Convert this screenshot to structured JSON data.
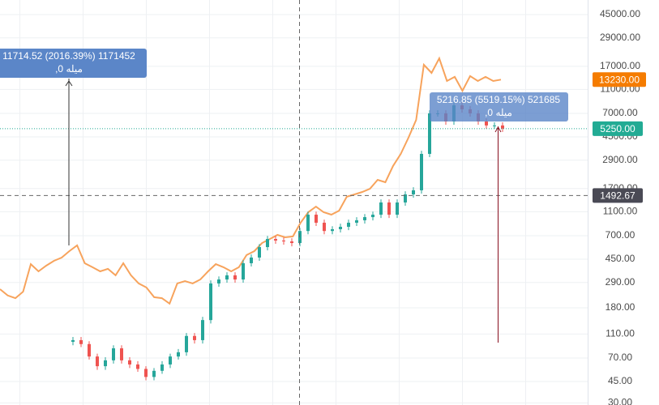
{
  "chart_data": {
    "type": "candlestick",
    "log_scale": true,
    "grid": true,
    "ylim": [
      28.9,
      59200
    ],
    "yticks": [
      {
        "value": 45000,
        "label": "45000.00"
      },
      {
        "value": 29000,
        "label": "29000.00"
      },
      {
        "value": 17000,
        "label": "17000.00"
      },
      {
        "value": 11000,
        "label": "11000.00"
      },
      {
        "value": 7000,
        "label": "7000.00"
      },
      {
        "value": 4500,
        "label": "4500.00"
      },
      {
        "value": 2900,
        "label": "2900.00"
      },
      {
        "value": 1700,
        "label": "1700.00"
      },
      {
        "value": 1100,
        "label": "1100.00"
      },
      {
        "value": 700,
        "label": "700.00"
      },
      {
        "value": 450,
        "label": "450.00"
      },
      {
        "value": 290,
        "label": "290.00"
      },
      {
        "value": 180,
        "label": "180.00"
      },
      {
        "value": 110,
        "label": "110.00"
      },
      {
        "value": 70,
        "label": "70.00"
      },
      {
        "value": 45,
        "label": "45.00"
      },
      {
        "value": 30,
        "label": "30.00"
      }
    ],
    "line": {
      "color": "#f7a35c",
      "values": [
        256,
        227,
        216,
        244,
        410,
        358,
        398,
        436,
        464,
        524,
        584,
        417,
        387,
        358,
        375,
        332,
        417,
        332,
        285,
        264,
        220,
        216,
        195,
        285,
        298,
        285,
        307,
        358,
        410,
        387,
        358,
        387,
        486,
        524,
        610,
        658,
        711,
        679,
        690,
        894,
        1090,
        1211,
        1090,
        1040,
        1122,
        1457,
        1524,
        1596,
        1696,
        2006,
        1916,
        2600,
        3267,
        4430,
        6196,
        17470,
        15000,
        19740,
        12880,
        13920,
        10720,
        14130,
        12880,
        13920,
        12880,
        13230
      ]
    },
    "candles": {
      "up_color": "#26a69a",
      "down_color": "#ef5350",
      "open": [
        95,
        98,
        91,
        72,
        60,
        67,
        84,
        67,
        62,
        57,
        49,
        55,
        62,
        72,
        78,
        106,
        98,
        143,
        285,
        307,
        332,
        307,
        417,
        464,
        565,
        658,
        639,
        629,
        610,
        765,
        1040,
        894,
        765,
        791,
        828,
        894,
        936,
        993,
        1040,
        1309,
        1040,
        1309,
        1524,
        1646,
        3267,
        7003,
        7003,
        6013,
        8150,
        7560,
        7003,
        6013,
        5580,
        5580
      ],
      "high": [
        104,
        104,
        96,
        76,
        71,
        89,
        89,
        71,
        66,
        60,
        58,
        66,
        76,
        83,
        112,
        112,
        152,
        302,
        325,
        352,
        352,
        442,
        492,
        599,
        697,
        697,
        677,
        667,
        811,
        1102,
        1102,
        948,
        838,
        878,
        948,
        992,
        1053,
        1102,
        1388,
        1388,
        1388,
        1615,
        1745,
        3463,
        7423,
        7423,
        7423,
        8639,
        8639,
        8014,
        7423,
        6374,
        5915,
        5915
      ],
      "low": [
        89,
        86,
        68,
        56,
        56,
        63,
        63,
        58,
        54,
        46,
        46,
        52,
        58,
        68,
        73,
        92,
        92,
        134,
        268,
        289,
        289,
        289,
        392,
        436,
        531,
        601,
        591,
        573,
        573,
        719,
        840,
        719,
        719,
        744,
        778,
        840,
        880,
        933,
        978,
        978,
        978,
        1230,
        1433,
        1547,
        3071,
        6583,
        5652,
        5652,
        7106,
        6583,
        5652,
        5245,
        5245,
        4935
      ],
      "close": [
        98,
        91,
        72,
        60,
        67,
        84,
        67,
        62,
        57,
        49,
        55,
        62,
        72,
        78,
        106,
        98,
        143,
        285,
        307,
        332,
        307,
        417,
        464,
        565,
        658,
        639,
        629,
        610,
        765,
        1040,
        894,
        765,
        791,
        828,
        894,
        936,
        993,
        1040,
        1309,
        1040,
        1309,
        1524,
        1646,
        3267,
        7003,
        7003,
        6013,
        8150,
        7560,
        7003,
        6013,
        5580,
        5580,
        5250
      ]
    },
    "price_labels": [
      {
        "value": 13230,
        "label": "13230.00",
        "color": "#f57c00"
      },
      {
        "value": 5250,
        "label": "5250.00",
        "color": "#22ab94"
      },
      {
        "value": 1492.67,
        "label": "1492.67",
        "color": "#4a4a55"
      }
    ],
    "annotations": [
      {
        "lines": [
          "11714.52 (2016.39%) 1171452",
          "میله 0,"
        ]
      },
      {
        "lines": [
          "5216.85 (5519.15%) 521685",
          "میله 0,"
        ]
      }
    ]
  }
}
